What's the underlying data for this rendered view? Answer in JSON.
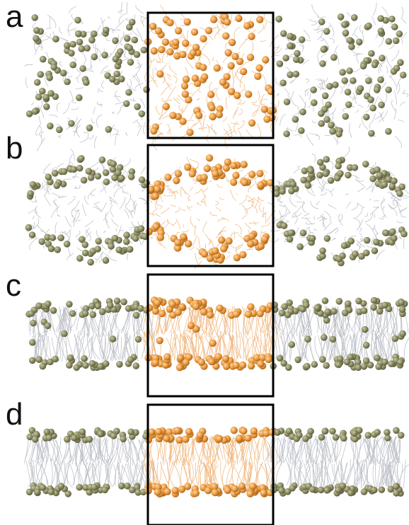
{
  "panels": [
    {
      "label": "a"
    },
    {
      "label": "b"
    },
    {
      "label": "c"
    },
    {
      "label": "d"
    }
  ],
  "colors": {
    "periodic_bead": "#8b8b62",
    "central_bead": "#e99a3f",
    "periodic_tail": "#b9bcc4",
    "central_tail": "#f0b67c",
    "box": "#000000"
  }
}
